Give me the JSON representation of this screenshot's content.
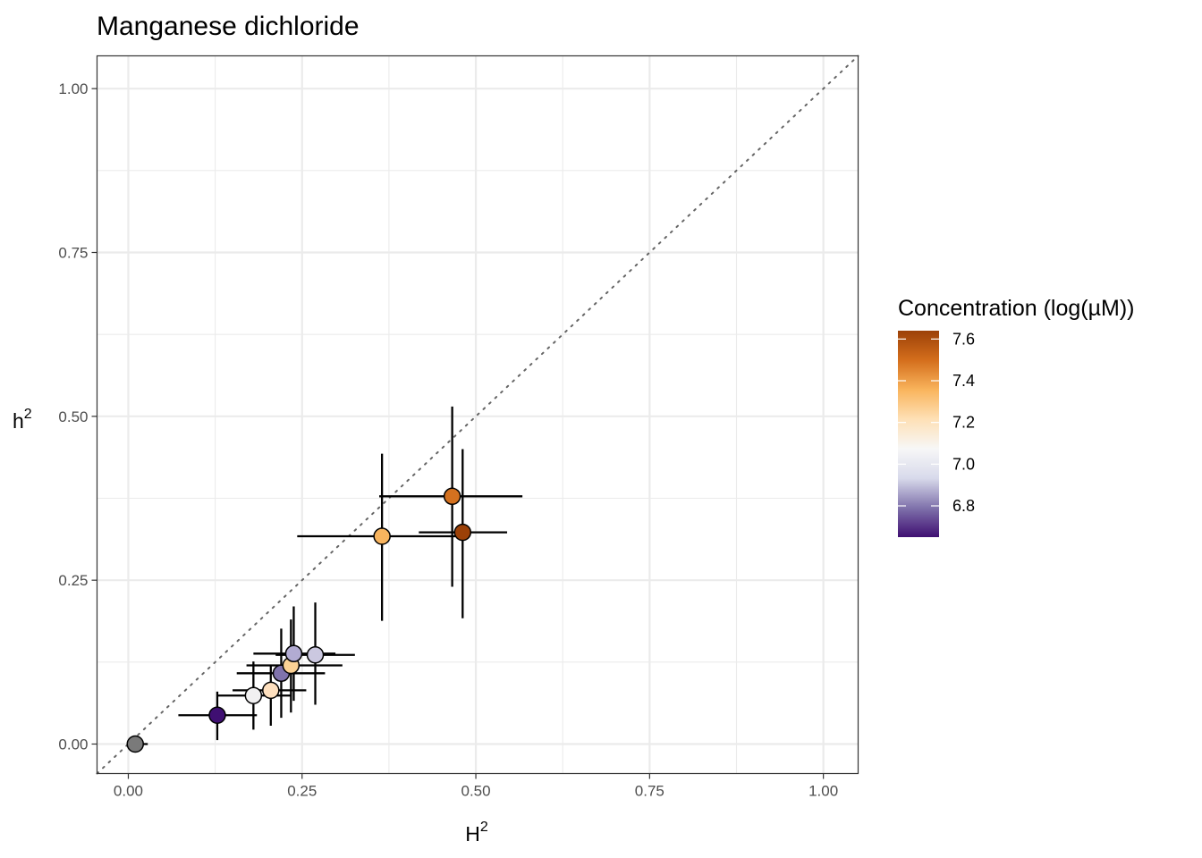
{
  "chart_data": {
    "type": "scatter",
    "title": "Manganese dichloride",
    "xlabel": "H",
    "xlabel_sup": "2",
    "ylabel": "h",
    "ylabel_sup": "2",
    "xlim": [
      -0.045,
      1.05
    ],
    "ylim": [
      -0.045,
      1.05
    ],
    "x_ticks": [
      0.0,
      0.25,
      0.5,
      0.75,
      1.0
    ],
    "x_tick_labels": [
      "0.00",
      "0.25",
      "0.50",
      "0.75",
      "1.00"
    ],
    "y_ticks": [
      0.0,
      0.25,
      0.5,
      0.75,
      1.0
    ],
    "y_tick_labels": [
      "0.00",
      "0.25",
      "0.50",
      "0.75",
      "1.00"
    ],
    "grid": true,
    "reference_line": "y = x (dotted)",
    "legend": {
      "title": "Concentration (log(µM))",
      "type": "colorbar",
      "placement": "right",
      "range": [
        6.65,
        7.64
      ],
      "breaks": [
        6.8,
        7.0,
        7.2,
        7.4,
        7.6
      ],
      "break_labels": [
        "6.8",
        "7.0",
        "7.2",
        "7.4",
        "7.6"
      ],
      "colors": [
        "#3f0f72",
        "#8073ac",
        "#d8daeb",
        "#f7f7f7",
        "#fee0b6",
        "#f9b45c",
        "#d46e1c",
        "#9c4108"
      ]
    },
    "points": [
      {
        "x": 0.01,
        "y": 0.0,
        "xmin": 0.0,
        "xmax": 0.028,
        "ymin": 0.0,
        "ymax": 0.0,
        "conc": null,
        "color": "#7a7a7a"
      },
      {
        "x": 0.128,
        "y": 0.044,
        "xmin": 0.072,
        "xmax": 0.185,
        "ymin": 0.006,
        "ymax": 0.08,
        "conc": 6.66,
        "color": "#3f0f72"
      },
      {
        "x": 0.18,
        "y": 0.074,
        "xmin": 0.128,
        "xmax": 0.235,
        "ymin": 0.022,
        "ymax": 0.126,
        "conc": 7.1,
        "color": "#f1f0f1"
      },
      {
        "x": 0.205,
        "y": 0.082,
        "xmin": 0.15,
        "xmax": 0.256,
        "ymin": 0.028,
        "ymax": 0.12,
        "conc": 7.25,
        "color": "#fee0bf"
      },
      {
        "x": 0.22,
        "y": 0.108,
        "xmin": 0.156,
        "xmax": 0.283,
        "ymin": 0.04,
        "ymax": 0.176,
        "conc": 6.85,
        "color": "#8073ac"
      },
      {
        "x": 0.234,
        "y": 0.12,
        "xmin": 0.17,
        "xmax": 0.308,
        "ymin": 0.048,
        "ymax": 0.19,
        "conc": 7.3,
        "color": "#fcd295"
      },
      {
        "x": 0.238,
        "y": 0.138,
        "xmin": 0.18,
        "xmax": 0.298,
        "ymin": 0.066,
        "ymax": 0.21,
        "conc": 6.95,
        "color": "#b2abd2"
      },
      {
        "x": 0.269,
        "y": 0.136,
        "xmin": 0.212,
        "xmax": 0.326,
        "ymin": 0.06,
        "ymax": 0.216,
        "conc": 7.0,
        "color": "#cbc8e0"
      },
      {
        "x": 0.365,
        "y": 0.317,
        "xmin": 0.243,
        "xmax": 0.49,
        "ymin": 0.188,
        "ymax": 0.443,
        "conc": 7.35,
        "color": "#f8b45e"
      },
      {
        "x": 0.466,
        "y": 0.378,
        "xmin": 0.361,
        "xmax": 0.567,
        "ymin": 0.24,
        "ymax": 0.515,
        "conc": 7.5,
        "color": "#d4711f"
      },
      {
        "x": 0.481,
        "y": 0.323,
        "xmin": 0.418,
        "xmax": 0.545,
        "ymin": 0.192,
        "ymax": 0.45,
        "conc": 7.63,
        "color": "#9c4108"
      }
    ]
  }
}
